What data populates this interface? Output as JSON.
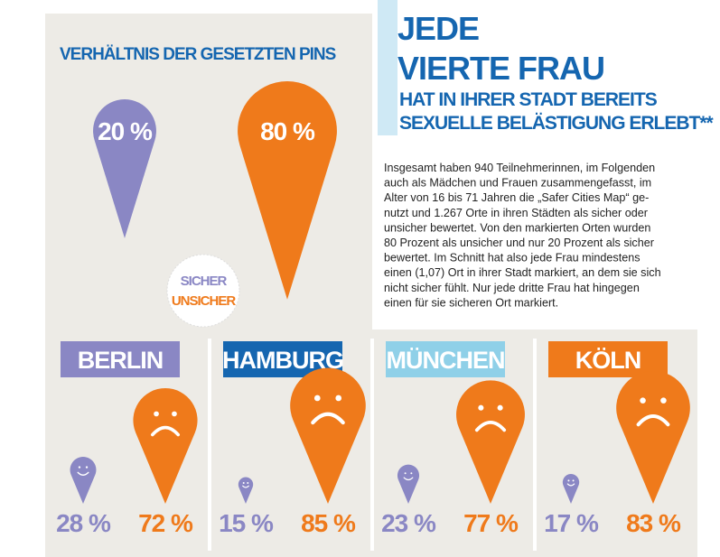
{
  "overview": {
    "title": "VERHÄLTNIS DER GESETZTEN PINS",
    "values": [
      20,
      80
    ],
    "value_labels": [
      "20 %",
      "80 %"
    ],
    "legend": [
      "SICHER",
      "UNSICHER"
    ]
  },
  "headline": {
    "lines": [
      "JEDE",
      "VIERTE FRAU",
      "HAT IN IHRER STADT BEREITS",
      "SEXUELLE BELÄSTIGUNG ERLEBT**"
    ]
  },
  "text": {
    "lines": [
      "Insgesamt haben 940 Teilnehmerinnen, im Folgenden",
      "auch als Mädchen und Frauen zusammengefasst, im",
      "Alter von 16 bis 71 Jahren die „Safer Cities Map“ ge-",
      "nutzt und 1.267 Orte in ihren Städten als sicher oder",
      "unsicher bewertet. Von den markierten Orten wurden",
      "80 Prozent als unsicher und nur 20 Prozent als sicher",
      "bewertet. Im Schnitt hat also jede Frau mindestens",
      "einen (1,07) Ort in ihrer Stadt markiert, an dem sie sich",
      "nicht sicher fühlt. Nur jede dritte Frau hat hingegen",
      "einen für sie sicheren Ort markiert."
    ]
  },
  "cities": [
    {
      "name": "BERLIN",
      "color": "#8a87c4",
      "values": [
        28,
        72
      ],
      "value_labels": [
        "28 %",
        "72 %"
      ]
    },
    {
      "name": "HAMBURG",
      "color": "#1566b0",
      "values": [
        15,
        85
      ],
      "value_labels": [
        "15 %",
        "85 %"
      ]
    },
    {
      "name": "MÜNCHEN",
      "color": "#8fd0e8",
      "values": [
        23,
        77
      ],
      "value_labels": [
        "23 %",
        "77 %"
      ]
    },
    {
      "name": "KÖLN",
      "color": "#ef7a1b",
      "values": [
        17,
        83
      ],
      "value_labels": [
        "17 %",
        "83 %"
      ]
    }
  ],
  "colors": {
    "safe": "#8a87c4",
    "unsafe": "#ef7a1b"
  }
}
